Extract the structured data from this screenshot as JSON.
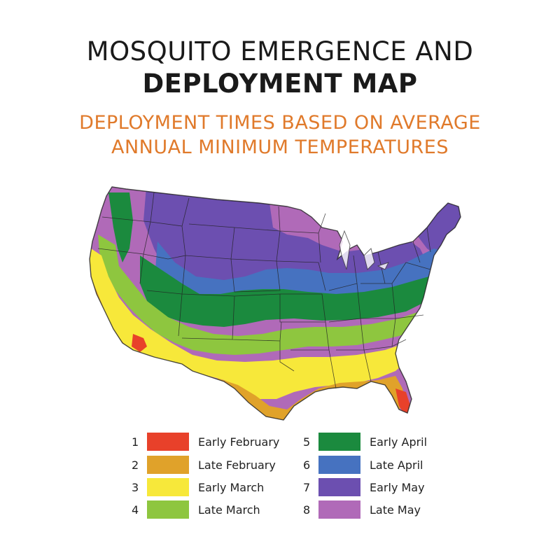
{
  "title": {
    "line1": "MOSQUITO EMERGENCE AND",
    "line2": "DEPLOYMENT MAP"
  },
  "subtitle": {
    "line1": "DEPLOYMENT TIMES BASED ON AVERAGE",
    "line2": "ANNUAL MINIMUM TEMPERATURES"
  },
  "colors": {
    "title": "#1a1a1a",
    "subtitle": "#e07a2b"
  },
  "legend": [
    {
      "number": "1",
      "label": "Early February",
      "color": "#e8412a"
    },
    {
      "number": "2",
      "label": "Late February",
      "color": "#e0a22a"
    },
    {
      "number": "3",
      "label": "Early March",
      "color": "#f7e83a"
    },
    {
      "number": "4",
      "label": "Late March",
      "color": "#8ec63f"
    },
    {
      "number": "5",
      "label": "Early April",
      "color": "#1b8a3e"
    },
    {
      "number": "6",
      "label": "Late April",
      "color": "#4672c0"
    },
    {
      "number": "7",
      "label": "Early May",
      "color": "#6c4fb0"
    },
    {
      "number": "8",
      "label": "Late May",
      "color": "#b06ab8"
    }
  ]
}
